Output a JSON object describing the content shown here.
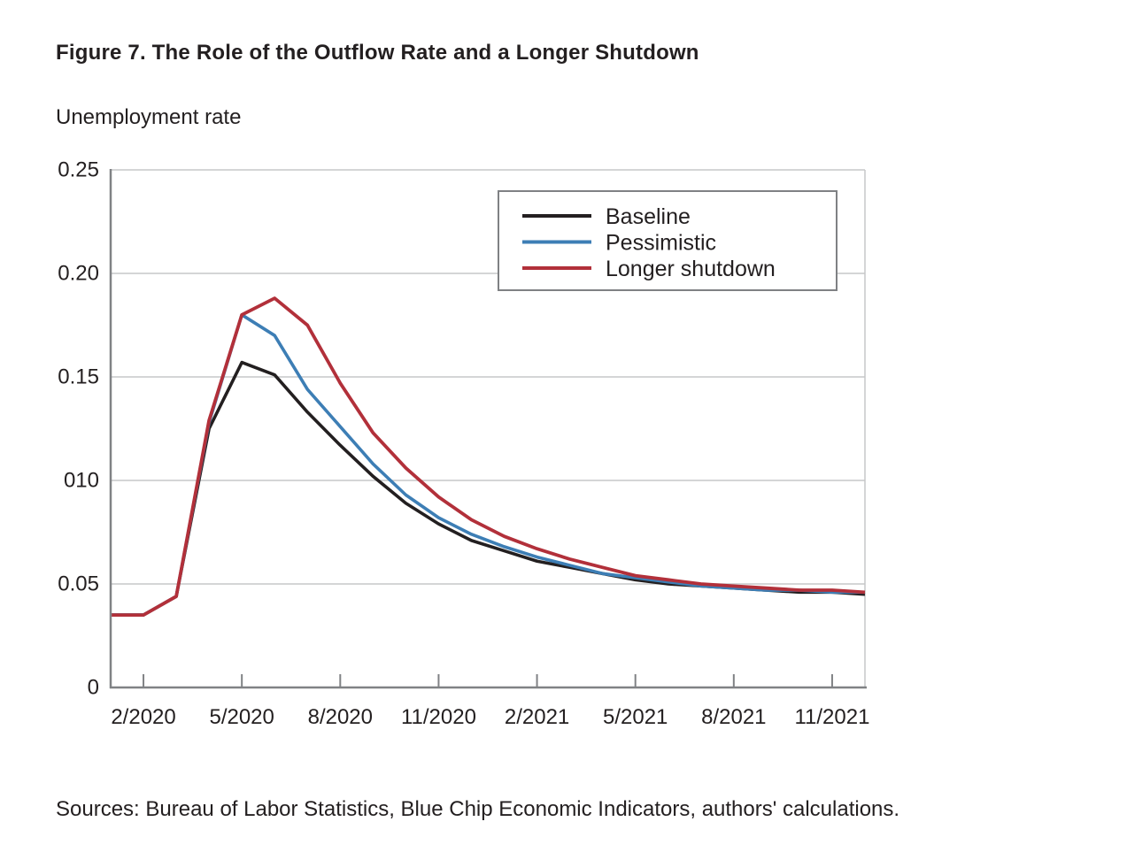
{
  "figure": {
    "title": "Figure 7. The Role of the Outflow Rate and a Longer Shutdown",
    "y_axis_title": "Unemployment rate",
    "source_note": "Sources: Bureau of Labor Statistics, Blue Chip Economic Indicators, authors' calculations."
  },
  "colors": {
    "baseline": "#231f20",
    "pessimistic": "#3d7eb5",
    "longer_shutdown": "#b2303a",
    "gridline": "#c6c7c8",
    "axis": "#808285",
    "legend_border": "#7f8184",
    "text": "#231f20"
  },
  "chart_data": {
    "type": "line",
    "title": "Figure 7. The Role of the Outflow Rate and a Longer Shutdown",
    "ylabel": "Unemployment rate",
    "xlabel": "",
    "ylim": [
      0,
      0.25
    ],
    "grid": "horizontal",
    "legend_position": "upper-right-inside",
    "x": [
      "1/2020",
      "2/2020",
      "3/2020",
      "4/2020",
      "5/2020",
      "6/2020",
      "7/2020",
      "8/2020",
      "9/2020",
      "10/2020",
      "11/2020",
      "12/2020",
      "1/2021",
      "2/2021",
      "3/2021",
      "4/2021",
      "5/2021",
      "6/2021",
      "7/2021",
      "8/2021",
      "9/2021",
      "10/2021",
      "11/2021",
      "12/2021"
    ],
    "x_tick_labels": [
      "2/2020",
      "5/2020",
      "8/2020",
      "11/2020",
      "2/2021",
      "5/2021",
      "8/2021",
      "11/2021"
    ],
    "x_tick_indices": [
      1,
      4,
      7,
      10,
      13,
      16,
      19,
      22
    ],
    "y_ticks": [
      0,
      0.05,
      0.1,
      0.15,
      0.2,
      0.25
    ],
    "y_tick_labels": [
      "0",
      "0.05",
      "010",
      "0.15",
      "0.20",
      "0.25"
    ],
    "series": [
      {
        "name": "Baseline",
        "color": "#231f20",
        "values": [
          0.035,
          0.035,
          0.044,
          0.125,
          0.157,
          0.151,
          0.133,
          0.117,
          0.102,
          0.089,
          0.079,
          0.071,
          0.066,
          0.061,
          0.058,
          0.055,
          0.052,
          0.05,
          0.049,
          0.048,
          0.047,
          0.046,
          0.046,
          0.045
        ]
      },
      {
        "name": "Pessimistic",
        "color": "#3d7eb5",
        "values": [
          0.035,
          0.035,
          0.044,
          0.128,
          0.18,
          0.17,
          0.144,
          0.126,
          0.108,
          0.093,
          0.082,
          0.074,
          0.068,
          0.063,
          0.059,
          0.055,
          0.053,
          0.051,
          0.049,
          0.048,
          0.047,
          0.047,
          0.046,
          0.046
        ]
      },
      {
        "name": "Longer shutdown",
        "color": "#b2303a",
        "values": [
          0.035,
          0.035,
          0.044,
          0.129,
          0.18,
          0.188,
          0.175,
          0.147,
          0.123,
          0.106,
          0.092,
          0.081,
          0.073,
          0.067,
          0.062,
          0.058,
          0.054,
          0.052,
          0.05,
          0.049,
          0.048,
          0.047,
          0.047,
          0.046
        ]
      }
    ]
  }
}
